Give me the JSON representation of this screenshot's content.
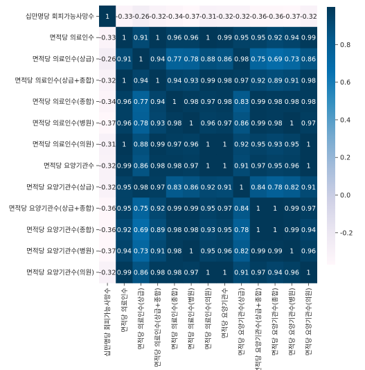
{
  "chart_data": {
    "type": "heatmap",
    "title": "",
    "xlabel": "",
    "ylabel": "",
    "row_labels": [
      "십만명당 회피가능사망수",
      "면적당 의료인수",
      "면적당 의료인수(상급)",
      "면적당 의료인수(상급+종합)",
      "면적당 의료인수(종합)",
      "면적당 의료인수(병원)",
      "면적당 의료인수(의원)",
      "면적당 요양기관수",
      "면적당 요양기관수(상급)",
      "면적당 요양기관수(상급+종합)",
      "면적당 요양기관수(종합)",
      "면적당 요양기관수(병원)",
      "면적당 요양기관수(의원)"
    ],
    "col_labels": [
      "십만명당 회피가능사망수",
      "면적당 의료인수",
      "면적당 의료인수(상급)",
      "면적당 의료인수(상급+종합)",
      "면적당 의료인수(종합)",
      "면적당 의료인수(병원)",
      "면적당 의료인수(의원)",
      "면적당 요양기관수",
      "면적당 요양기관수(상급)",
      "면적당 요양기관수(상급+종합)",
      "면적당 요양기관수(종합)",
      "면적당 요양기관수(병원)",
      "면적당 요양기관수(의원)"
    ],
    "values": [
      [
        1,
        -0.33,
        -0.26,
        -0.32,
        -0.34,
        -0.37,
        -0.31,
        -0.32,
        -0.32,
        -0.36,
        -0.36,
        -0.37,
        -0.32
      ],
      [
        -0.33,
        1,
        0.91,
        1,
        0.96,
        0.96,
        1,
        0.99,
        0.95,
        0.95,
        0.92,
        0.94,
        0.99
      ],
      [
        -0.26,
        0.91,
        1,
        0.94,
        0.77,
        0.78,
        0.88,
        0.86,
        0.98,
        0.75,
        0.69,
        0.73,
        0.86
      ],
      [
        -0.32,
        1,
        0.94,
        1,
        0.94,
        0.93,
        0.99,
        0.98,
        0.97,
        0.92,
        0.89,
        0.91,
        0.98
      ],
      [
        -0.34,
        0.96,
        0.77,
        0.94,
        1,
        0.98,
        0.97,
        0.98,
        0.83,
        0.99,
        0.98,
        0.98,
        0.98
      ],
      [
        -0.37,
        0.96,
        0.78,
        0.93,
        0.98,
        1,
        0.96,
        0.97,
        0.86,
        0.99,
        0.98,
        1,
        0.97
      ],
      [
        -0.31,
        1,
        0.88,
        0.99,
        0.97,
        0.96,
        1,
        1,
        0.92,
        0.95,
        0.93,
        0.95,
        1
      ],
      [
        -0.32,
        0.99,
        0.86,
        0.98,
        0.98,
        0.97,
        1,
        1,
        0.91,
        0.97,
        0.95,
        0.96,
        1
      ],
      [
        -0.32,
        0.95,
        0.98,
        0.97,
        0.83,
        0.86,
        0.92,
        0.91,
        1,
        0.84,
        0.78,
        0.82,
        0.91
      ],
      [
        -0.36,
        0.95,
        0.75,
        0.92,
        0.99,
        0.99,
        0.95,
        0.97,
        0.84,
        1,
        1,
        0.99,
        0.97
      ],
      [
        -0.36,
        0.92,
        0.69,
        0.89,
        0.98,
        0.98,
        0.93,
        0.95,
        0.78,
        1,
        1,
        0.99,
        0.94
      ],
      [
        -0.37,
        0.94,
        0.73,
        0.91,
        0.98,
        1,
        0.95,
        0.96,
        0.82,
        0.99,
        0.99,
        1,
        0.96
      ],
      [
        -0.32,
        0.99,
        0.86,
        0.98,
        0.98,
        0.97,
        1,
        1,
        0.91,
        0.97,
        0.94,
        0.96,
        1
      ]
    ],
    "value_labels": [
      [
        "1",
        "-0.33",
        "-0.26",
        "-0.32",
        "-0.34",
        "-0.37",
        "-0.31",
        "-0.32",
        "-0.32",
        "-0.36",
        "-0.36",
        "-0.37",
        "-0.32"
      ],
      [
        "-0.33",
        "1",
        "0.91",
        "1",
        "0.96",
        "0.96",
        "1",
        "0.99",
        "0.95",
        "0.95",
        "0.92",
        "0.94",
        "0.99"
      ],
      [
        "-0.26",
        "0.91",
        "1",
        "0.94",
        "0.77",
        "0.78",
        "0.88",
        "0.86",
        "0.98",
        "0.75",
        "0.69",
        "0.73",
        "0.86"
      ],
      [
        "-0.32",
        "1",
        "0.94",
        "1",
        "0.94",
        "0.93",
        "0.99",
        "0.98",
        "0.97",
        "0.92",
        "0.89",
        "0.91",
        "0.98"
      ],
      [
        "-0.34",
        "0.96",
        "0.77",
        "0.94",
        "1",
        "0.98",
        "0.97",
        "0.98",
        "0.83",
        "0.99",
        "0.98",
        "0.98",
        "0.98"
      ],
      [
        "-0.37",
        "0.96",
        "0.78",
        "0.93",
        "0.98",
        "1",
        "0.96",
        "0.97",
        "0.86",
        "0.99",
        "0.98",
        "1",
        "0.97"
      ],
      [
        "-0.31",
        "1",
        "0.88",
        "0.99",
        "0.97",
        "0.96",
        "1",
        "1",
        "0.92",
        "0.95",
        "0.93",
        "0.95",
        "1"
      ],
      [
        "-0.32",
        "0.99",
        "0.86",
        "0.98",
        "0.98",
        "0.97",
        "1",
        "1",
        "0.91",
        "0.97",
        "0.95",
        "0.96",
        "1"
      ],
      [
        "-0.32",
        "0.95",
        "0.98",
        "0.97",
        "0.83",
        "0.86",
        "0.92",
        "0.91",
        "1",
        "0.84",
        "0.78",
        "0.82",
        "0.91"
      ],
      [
        "-0.36",
        "0.95",
        "0.75",
        "0.92",
        "0.99",
        "0.99",
        "0.95",
        "0.97",
        "0.84",
        "1",
        "1",
        "0.99",
        "0.97"
      ],
      [
        "-0.36",
        "0.92",
        "0.69",
        "0.89",
        "0.98",
        "0.98",
        "0.93",
        "0.95",
        "0.78",
        "1",
        "1",
        "0.99",
        "0.94"
      ],
      [
        "-0.37",
        "0.94",
        "0.73",
        "0.91",
        "0.98",
        "1",
        "0.95",
        "0.96",
        "0.82",
        "0.99",
        "0.99",
        "1",
        "0.96"
      ],
      [
        "-0.32",
        "0.99",
        "0.86",
        "0.98",
        "0.98",
        "0.97",
        "1",
        "1",
        "0.91",
        "0.97",
        "0.94",
        "0.96",
        "1"
      ]
    ],
    "vmin": -0.37,
    "vmax": 1,
    "colormap": "PuBu",
    "colormap_stops": [
      "#fff7fb",
      "#ece7f2",
      "#d0d1e6",
      "#a6bddb",
      "#74a9cf",
      "#3690c0",
      "#0570b0",
      "#045a8d",
      "#023858"
    ],
    "colorbar_ticks": [
      {
        "value": 0.8,
        "label": "0.8"
      },
      {
        "value": 0.6,
        "label": "0.6"
      },
      {
        "value": 0.4,
        "label": "0.4"
      },
      {
        "value": 0.2,
        "label": "0.2"
      },
      {
        "value": 0.0,
        "label": "0.0"
      },
      {
        "value": -0.2,
        "label": "-0.2"
      }
    ],
    "annotation_colors": {
      "light": "#ffffff",
      "dark": "#262626"
    },
    "grid": false,
    "legend": "colorbar-right"
  }
}
